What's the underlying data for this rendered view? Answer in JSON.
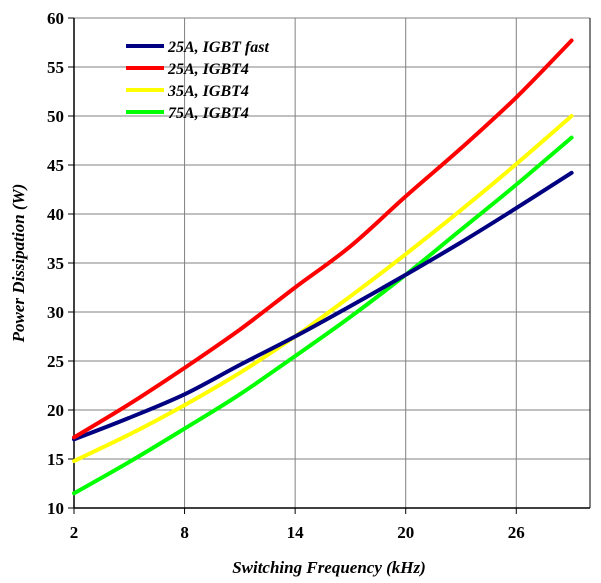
{
  "chart_data": {
    "type": "line",
    "xlabel": "Switching Frequency (kHz)",
    "ylabel": "Power Dissipation (W)",
    "xlim": [
      2,
      30
    ],
    "ylim": [
      10,
      60
    ],
    "x_ticks": [
      2,
      8,
      14,
      20,
      26
    ],
    "y_ticks": [
      10,
      15,
      20,
      25,
      30,
      35,
      40,
      45,
      50,
      55,
      60
    ],
    "grid": true,
    "legend_position": "top-left",
    "series": [
      {
        "name": "25A, IGBT fast",
        "color": "#000080",
        "x": [
          2,
          5,
          8,
          11,
          14,
          17,
          20,
          23,
          26,
          29
        ],
        "y": [
          17.0,
          19.2,
          21.6,
          24.6,
          27.5,
          30.6,
          33.8,
          37.1,
          40.6,
          44.2
        ]
      },
      {
        "name": "25A, IGBT4",
        "color": "#ff0000",
        "x": [
          2,
          5,
          8,
          11,
          14,
          17,
          20,
          23,
          26,
          29
        ],
        "y": [
          17.2,
          20.6,
          24.3,
          28.2,
          32.5,
          36.7,
          41.8,
          46.7,
          51.9,
          57.7
        ]
      },
      {
        "name": "35A, IGBT4",
        "color": "#ffff00",
        "x": [
          2,
          5,
          8,
          11,
          14,
          17,
          20,
          23,
          26,
          29
        ],
        "y": [
          14.8,
          17.5,
          20.5,
          23.8,
          27.5,
          31.6,
          35.9,
          40.4,
          45.1,
          50.0
        ]
      },
      {
        "name": "75A, IGBT4",
        "color": "#00ff00",
        "x": [
          2,
          5,
          8,
          11,
          14,
          17,
          20,
          23,
          26,
          29
        ],
        "y": [
          11.5,
          14.7,
          18.1,
          21.6,
          25.5,
          29.5,
          33.8,
          38.4,
          43.0,
          47.8
        ]
      }
    ]
  }
}
